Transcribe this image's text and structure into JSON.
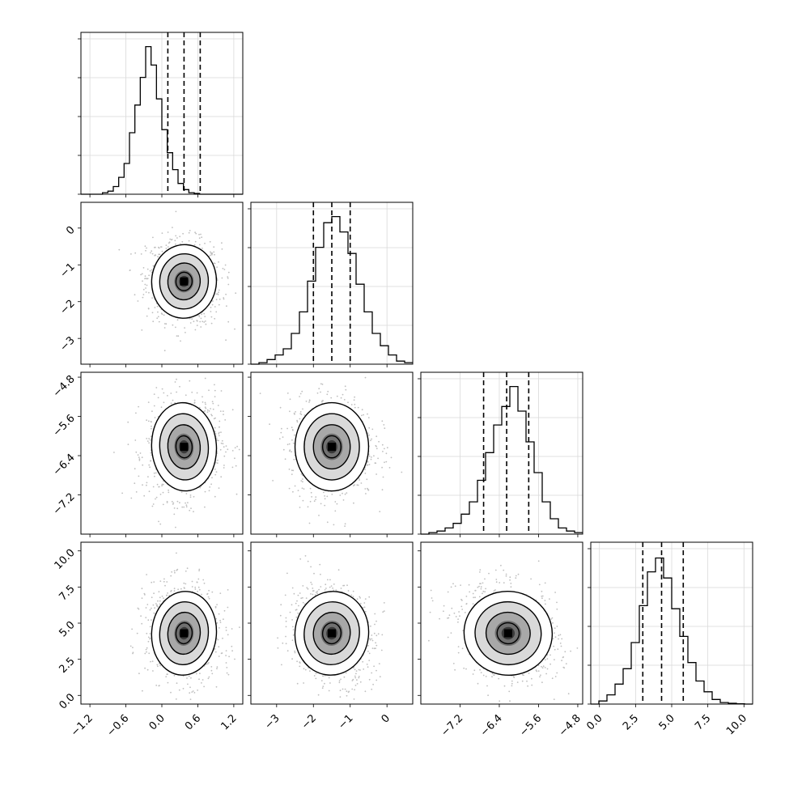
{
  "chart_data": {
    "type": "corner",
    "parameters": [
      {
        "xlim": [
          -1.35,
          1.35
        ],
        "ticks": [
          "-1.2",
          "-0.6",
          "0.0",
          "0.6",
          "1.2"
        ],
        "tick_values": [
          -1.2,
          -0.6,
          0.0,
          0.6,
          1.2
        ],
        "quantiles": [
          0.1,
          0.37,
          0.64
        ],
        "hist_bin_width": 0.09,
        "hist_counts": [
          0,
          0,
          0,
          0,
          0.01,
          0.02,
          0.05,
          0.11,
          0.2,
          0.4,
          0.58,
          0.76,
          0.96,
          0.84,
          0.62,
          0.42,
          0.27,
          0.16,
          0.07,
          0.03,
          0.01,
          0.005,
          0,
          0,
          0,
          0,
          0,
          0,
          0,
          0
        ]
      },
      {
        "xlim": [
          -3.7,
          0.7
        ],
        "ylim": [
          -3.7,
          0.7
        ],
        "ticks": [
          "-3",
          "-2",
          "-1",
          "0"
        ],
        "tick_values": [
          -3,
          -2,
          -1,
          0
        ],
        "quantiles": [
          -2.0,
          -1.5,
          -1.0
        ],
        "hist_bin_width": 0.22,
        "hist_counts": [
          0,
          0.01,
          0.03,
          0.06,
          0.1,
          0.2,
          0.34,
          0.54,
          0.76,
          0.92,
          0.96,
          0.86,
          0.72,
          0.52,
          0.34,
          0.2,
          0.12,
          0.06,
          0.02,
          0.01
        ]
      },
      {
        "xlim": [
          -8.0,
          -4.7
        ],
        "ylim": [
          -8.0,
          -4.7
        ],
        "ticks": [
          "-7.2",
          "-6.4",
          "-5.6",
          "-4.8"
        ],
        "tick_values": [
          -7.2,
          -6.4,
          -5.6,
          -4.8
        ],
        "quantiles": [
          -6.72,
          -6.25,
          -5.8
        ],
        "hist_bin_width": 0.165,
        "hist_counts": [
          0,
          0.01,
          0.02,
          0.04,
          0.07,
          0.13,
          0.21,
          0.35,
          0.53,
          0.71,
          0.83,
          0.96,
          0.8,
          0.6,
          0.4,
          0.21,
          0.1,
          0.04,
          0.02,
          0.01
        ]
      },
      {
        "xlim": [
          -0.6,
          10.6
        ],
        "ylim": [
          -0.6,
          10.6
        ],
        "ticks": [
          "0.0",
          "2.5",
          "5.0",
          "7.5",
          "10.0"
        ],
        "tick_values": [
          0,
          2.5,
          5.0,
          7.5,
          10.0
        ],
        "quantiles": [
          3.0,
          4.3,
          5.8
        ],
        "hist_bin_width": 0.56,
        "hist_counts": [
          0,
          0.02,
          0.06,
          0.13,
          0.23,
          0.4,
          0.64,
          0.86,
          0.95,
          0.82,
          0.62,
          0.44,
          0.27,
          0.15,
          0.08,
          0.03,
          0.01,
          0.005,
          0.002,
          0
        ]
      }
    ],
    "pairs": [
      {
        "row": 1,
        "col": 0,
        "center": [
          0.37,
          -1.45
        ],
        "sigma": [
          0.27,
          0.5
        ],
        "rho": -0.1
      },
      {
        "row": 2,
        "col": 0,
        "center": [
          0.37,
          -6.22
        ],
        "sigma": [
          0.27,
          0.45
        ],
        "rho": 0.1
      },
      {
        "row": 2,
        "col": 1,
        "center": [
          -1.5,
          -6.22
        ],
        "sigma": [
          0.5,
          0.45
        ],
        "rho": 0.0
      },
      {
        "row": 3,
        "col": 0,
        "center": [
          0.37,
          4.3
        ],
        "sigma": [
          0.27,
          1.45
        ],
        "rho": -0.12
      },
      {
        "row": 3,
        "col": 1,
        "center": [
          -1.5,
          4.3
        ],
        "sigma": [
          0.5,
          1.45
        ],
        "rho": -0.18
      },
      {
        "row": 3,
        "col": 2,
        "center": [
          -6.22,
          4.3
        ],
        "sigma": [
          0.45,
          1.45
        ],
        "rho": -0.2
      }
    ],
    "contour_levels_sigma": [
      0.5,
      1.0,
      1.5,
      2.0
    ],
    "grid": true,
    "colors": {
      "line": "#000000",
      "points": "#bfbfbf",
      "grid": "#d9d9d9",
      "density_dark": "#3a3a3a"
    }
  }
}
